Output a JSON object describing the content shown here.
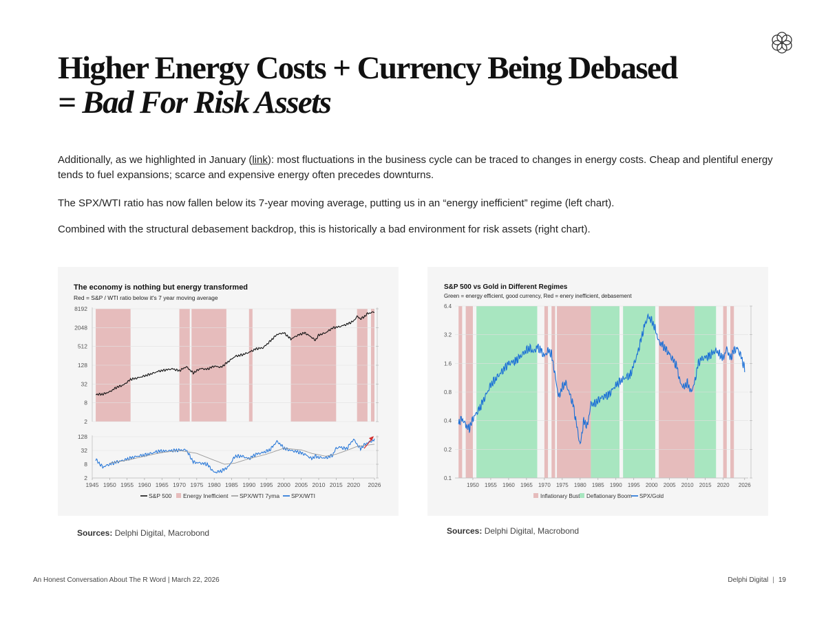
{
  "header": {
    "title_line1": "Higher Energy Costs + Currency Being Debased",
    "title_line2": "= Bad For Risk Assets"
  },
  "body": {
    "p1_before": "Additionally, as we highlighted in January (",
    "p1_link": "link",
    "p1_after": "): most fluctuations in the business cycle can be traced to changes in energy costs. Cheap and plentiful energy tends to fuel expansions; scarce and expensive energy often precedes downturns.",
    "p2": "The SPX/WTI ratio has now fallen below its 7-year moving average, putting us in an “energy inefficient” regime (left chart).",
    "p3": "Combined with the structural debasement backdrop, this is historically a bad environment for risk assets (right chart)."
  },
  "sources": {
    "label": "Sources:",
    "text": "Delphi Digital, Macrobond"
  },
  "footer": {
    "left": "An Honest Conversation About The R Word | March 22, 2026",
    "brand": "Delphi Digital",
    "sep": "|",
    "page": "19"
  },
  "colors": {
    "red_band": "#e6bcbc",
    "green_band": "#a8e6c0",
    "spx_line": "#111111",
    "ratio_line": "#1a6fd6",
    "ma_line": "#9a9a9a",
    "arrow": "#d23030"
  },
  "chart_data": [
    {
      "type": "line",
      "title": "The economy is nothing but energy transformed",
      "subtitle": "Red = S&P / WTI ratio below it's 7 year moving average",
      "x_tick_labels": [
        "1945",
        "1950",
        "1955",
        "1960",
        "1965",
        "1970",
        "1975",
        "1980",
        "1985",
        "1990",
        "1995",
        "2000",
        "2005",
        "2010",
        "2015",
        "2020",
        "2026"
      ],
      "xlim": [
        1945,
        2026
      ],
      "top_panel": {
        "scale": "log2",
        "ylim": [
          2,
          8192
        ],
        "y_tick_labels": [
          "8192",
          "2048",
          "512",
          "128",
          "32",
          "8",
          "2"
        ],
        "y_ticks": [
          8192,
          2048,
          512,
          128,
          32,
          8,
          2
        ],
        "series": [
          {
            "name": "S&P 500",
            "x": [
              1946,
              1948,
              1950,
              1952,
              1954,
              1956,
              1958,
              1960,
              1962,
              1964,
              1966,
              1968,
              1970,
              1972,
              1974,
              1976,
              1978,
              1980,
              1982,
              1984,
              1986,
              1988,
              1990,
              1992,
              1994,
              1996,
              1998,
              2000,
              2002,
              2004,
              2006,
              2008,
              2009,
              2010,
              2012,
              2014,
              2016,
              2018,
              2020,
              2021,
              2022,
              2023,
              2024,
              2025,
              2026
            ],
            "values": [
              15,
              15,
              18,
              25,
              30,
              45,
              50,
              58,
              68,
              82,
              90,
              98,
              85,
              115,
              72,
              100,
              95,
              120,
              110,
              165,
              245,
              275,
              330,
              430,
              460,
              740,
              1230,
              1400,
              880,
              1170,
              1400,
              1000,
              800,
              1180,
              1400,
              2000,
              2200,
              2600,
              3300,
              4700,
              3900,
              4500,
              5800,
              6100,
              6600
            ]
          }
        ]
      },
      "bottom_panel": {
        "scale": "log2",
        "ylim": [
          2,
          128
        ],
        "y_tick_labels": [
          "128",
          "32",
          "8",
          "2"
        ],
        "y_ticks": [
          128,
          32,
          8,
          2
        ],
        "series": [
          {
            "name": "SPX/WTI",
            "x": [
              1946,
              1948,
              1950,
              1952,
              1954,
              1956,
              1958,
              1960,
              1962,
              1964,
              1966,
              1968,
              1970,
              1972,
              1974,
              1976,
              1978,
              1980,
              1982,
              1984,
              1986,
              1988,
              1990,
              1992,
              1994,
              1996,
              1998,
              1999,
              2000,
              2002,
              2004,
              2006,
              2008,
              2009,
              2010,
              2012,
              2014,
              2015,
              2016,
              2018,
              2020,
              2021,
              2022,
              2023,
              2024,
              2025,
              2026
            ],
            "values": [
              13,
              6,
              8,
              10,
              12,
              15,
              18,
              20,
              24,
              30,
              30,
              32,
              33,
              34,
              10,
              9,
              8,
              3.5,
              4,
              6,
              18,
              18,
              14,
              22,
              26,
              34,
              80,
              60,
              40,
              32,
              28,
              22,
              14,
              18,
              16,
              15,
              20,
              40,
              45,
              38,
              100,
              60,
              38,
              55,
              70,
              80,
              95
            ]
          },
          {
            "name": "SPX/WTI 7yma",
            "x": [
              1950,
              1955,
              1960,
              1965,
              1970,
              1975,
              1980,
              1983,
              1986,
              1990,
              1995,
              2000,
              2005,
              2008,
              2012,
              2015,
              2018,
              2021,
              2024,
              2026
            ],
            "values": [
              9,
              12,
              18,
              26,
              32,
              24,
              12,
              8,
              9,
              14,
              22,
              40,
              34,
              24,
              18,
              22,
              32,
              48,
              55,
              60
            ]
          }
        ]
      },
      "energy_inefficient_periods": [
        [
          1946,
          1956
        ],
        [
          1970,
          1973
        ],
        [
          1973.5,
          1983.5
        ],
        [
          1990,
          1991
        ],
        [
          2002,
          2015
        ],
        [
          2021,
          2024
        ],
        [
          2025,
          2026
        ]
      ],
      "legend": [
        "S&P 500",
        "Energy Inefficient",
        "SPX/WTI 7yma",
        "SPX/WTI"
      ]
    },
    {
      "type": "line",
      "title": "S&P 500 vs Gold in Different Regimes",
      "subtitle": "Green = energy efficient, good currency, Red = enery inefficient, debasement",
      "scale": "log2",
      "x_tick_labels": [
        "1950",
        "1955",
        "1960",
        "1965",
        "1970",
        "1975",
        "1980",
        "1985",
        "1990",
        "1995",
        "2000",
        "2005",
        "2010",
        "2015",
        "2020",
        "2026"
      ],
      "xlim": [
        1945,
        2027
      ],
      "ylim": [
        0.1,
        6.4
      ],
      "y_tick_labels": [
        "6.4",
        "3.2",
        "1.6",
        "0.8",
        "0.4",
        "0.2",
        "0.1"
      ],
      "y_ticks": [
        6.4,
        3.2,
        1.6,
        0.8,
        0.4,
        0.2,
        0.1
      ],
      "inflationary_bust_periods": [
        [
          1946,
          1947
        ],
        [
          1948,
          1950
        ],
        [
          1970,
          1971
        ],
        [
          1972,
          1973
        ],
        [
          1973.5,
          1983
        ],
        [
          2002,
          2012
        ],
        [
          2020,
          2021
        ],
        [
          2022,
          2023
        ]
      ],
      "deflationary_boom_periods": [
        [
          1951,
          1968
        ],
        [
          1983,
          1991
        ],
        [
          1992,
          2001
        ],
        [
          2012,
          2018
        ]
      ],
      "series": [
        {
          "name": "SPX/Gold",
          "x": [
            1946,
            1947,
            1948,
            1949,
            1950,
            1952,
            1955,
            1958,
            1960,
            1962,
            1965,
            1966,
            1967,
            1968,
            1969,
            1970,
            1971,
            1972,
            1973,
            1974,
            1975,
            1976,
            1978,
            1980,
            1981,
            1982,
            1983,
            1984,
            1986,
            1988,
            1990,
            1992,
            1994,
            1996,
            1998,
            1999,
            2000,
            2001,
            2002,
            2003,
            2005,
            2007,
            2008,
            2009,
            2010,
            2011,
            2012,
            2013,
            2014,
            2016,
            2018,
            2019,
            2020,
            2021,
            2022,
            2023,
            2024,
            2025,
            2026
          ],
          "values": [
            0.38,
            0.42,
            0.36,
            0.33,
            0.42,
            0.55,
            0.95,
            1.3,
            1.6,
            1.7,
            2.2,
            2.3,
            2.1,
            2.4,
            2.2,
            1.9,
            2.2,
            2.0,
            1.2,
            0.7,
            0.9,
            1.0,
            0.6,
            0.22,
            0.4,
            0.35,
            0.6,
            0.6,
            0.7,
            0.75,
            0.95,
            1.1,
            1.2,
            2.0,
            4.0,
            5.0,
            4.5,
            3.7,
            2.7,
            2.5,
            2.0,
            1.5,
            1.0,
            0.9,
            1.0,
            0.8,
            1.0,
            1.6,
            1.8,
            1.9,
            2.2,
            2.0,
            1.8,
            2.3,
            1.8,
            2.2,
            2.3,
            1.9,
            1.4
          ]
        }
      ],
      "legend": [
        "Inflationary Bust",
        "Deflationary Boom",
        "SPX/Gold"
      ]
    }
  ]
}
